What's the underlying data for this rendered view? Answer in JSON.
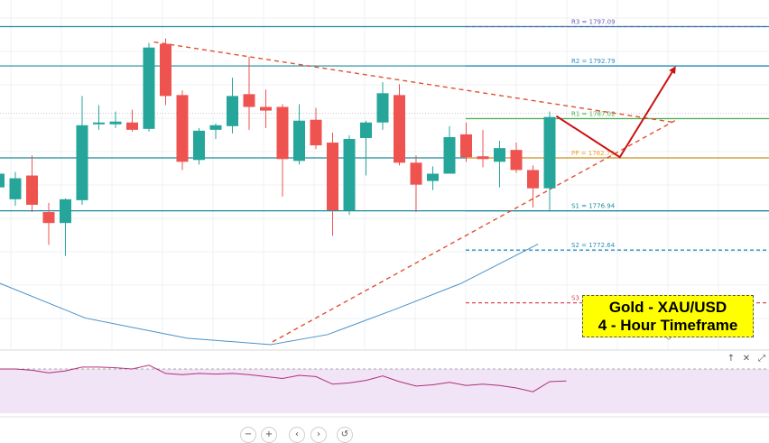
{
  "chart_data": [
    {
      "type": "candlestick",
      "title": "",
      "ylim": [
        1762.0,
        1800.0
      ],
      "grid": true,
      "candles": [
        {
          "o": 1779.5,
          "h": 1781.0,
          "c": 1781.0,
          "l": 1779.0
        },
        {
          "o": 1778.2,
          "h": 1781.2,
          "c": 1780.5,
          "l": 1777.5
        },
        {
          "o": 1780.8,
          "h": 1783.0,
          "c": 1777.6,
          "l": 1776.8
        },
        {
          "o": 1776.8,
          "h": 1777.8,
          "c": 1775.6,
          "l": 1773.2
        },
        {
          "o": 1775.6,
          "h": 1778.3,
          "c": 1778.2,
          "l": 1772.0
        },
        {
          "o": 1778.1,
          "h": 1789.5,
          "c": 1786.3,
          "l": 1777.6
        },
        {
          "o": 1786.4,
          "h": 1788.5,
          "c": 1786.6,
          "l": 1785.8
        },
        {
          "o": 1786.4,
          "h": 1787.8,
          "c": 1786.7,
          "l": 1786.0
        },
        {
          "o": 1786.6,
          "h": 1788.0,
          "c": 1785.8,
          "l": 1785.6
        },
        {
          "o": 1785.9,
          "h": 1795.3,
          "c": 1794.8,
          "l": 1785.6
        },
        {
          "o": 1795.2,
          "h": 1795.8,
          "c": 1789.5,
          "l": 1788.5
        },
        {
          "o": 1789.6,
          "h": 1790.1,
          "c": 1782.3,
          "l": 1781.4
        },
        {
          "o": 1782.5,
          "h": 1786.0,
          "c": 1785.7,
          "l": 1782.0
        },
        {
          "o": 1785.8,
          "h": 1786.5,
          "c": 1786.3,
          "l": 1784.8
        },
        {
          "o": 1786.2,
          "h": 1791.5,
          "c": 1789.5,
          "l": 1785.4
        },
        {
          "o": 1789.7,
          "h": 1793.8,
          "c": 1788.3,
          "l": 1785.8
        },
        {
          "o": 1788.3,
          "h": 1790.2,
          "c": 1787.9,
          "l": 1786.0
        },
        {
          "o": 1788.3,
          "h": 1788.6,
          "c": 1782.6,
          "l": 1778.5
        },
        {
          "o": 1782.4,
          "h": 1788.6,
          "c": 1786.8,
          "l": 1782.0
        },
        {
          "o": 1786.9,
          "h": 1788.2,
          "c": 1784.1,
          "l": 1783.7
        },
        {
          "o": 1784.4,
          "h": 1785.5,
          "c": 1777.0,
          "l": 1774.2
        },
        {
          "o": 1777.0,
          "h": 1785.2,
          "c": 1784.8,
          "l": 1776.5
        },
        {
          "o": 1784.9,
          "h": 1786.8,
          "c": 1786.6,
          "l": 1780.8
        },
        {
          "o": 1786.6,
          "h": 1791.0,
          "c": 1789.8,
          "l": 1785.8
        },
        {
          "o": 1789.6,
          "h": 1790.8,
          "c": 1782.2,
          "l": 1781.9
        },
        {
          "o": 1782.2,
          "h": 1783.0,
          "c": 1779.8,
          "l": 1776.8
        },
        {
          "o": 1780.2,
          "h": 1781.8,
          "c": 1781.0,
          "l": 1779.2
        },
        {
          "o": 1781.0,
          "h": 1786.2,
          "c": 1785.0,
          "l": 1781.0
        },
        {
          "o": 1785.3,
          "h": 1786.6,
          "c": 1782.8,
          "l": 1782.3
        },
        {
          "o": 1782.9,
          "h": 1785.8,
          "c": 1782.6,
          "l": 1781.7
        },
        {
          "o": 1782.3,
          "h": 1784.6,
          "c": 1783.8,
          "l": 1779.5
        },
        {
          "o": 1783.6,
          "h": 1784.4,
          "c": 1781.4,
          "l": 1781.1
        },
        {
          "o": 1781.4,
          "h": 1781.9,
          "c": 1779.4,
          "l": 1777.3
        },
        {
          "o": 1779.4,
          "h": 1787.8,
          "c": 1787.2,
          "l": 1777.0
        }
      ],
      "moving_average": [
        {
          "i": -1,
          "v": 1769.8
        },
        {
          "i": 5.2,
          "v": 1765.2
        },
        {
          "i": 11.3,
          "v": 1763.0
        },
        {
          "i": 16.3,
          "v": 1762.3
        },
        {
          "i": 19.7,
          "v": 1763.4
        },
        {
          "i": 23.8,
          "v": 1766.2
        },
        {
          "i": 27.7,
          "v": 1769.0
        },
        {
          "i": 32.3,
          "v": 1773.3
        }
      ],
      "pivot_levels": [
        {
          "label": "R3 = 1797.09",
          "value": 1797.09,
          "color": "#6b5bb5"
        },
        {
          "label": "R2 = 1792.79",
          "value": 1792.79,
          "color": "#2a8fbd"
        },
        {
          "label": "R1 = 1787.02",
          "value": 1787.02,
          "color": "#4caf50"
        },
        {
          "label": "PP = 1782.73",
          "value": 1782.73,
          "color": "#f0a030"
        },
        {
          "label": "S1 = 1776.94",
          "value": 1776.94,
          "color": "#1e8b9e"
        },
        {
          "label": "S2 = 1772.64",
          "value": 1772.64,
          "color": "#2a8fbd"
        },
        {
          "label": "S3 = 1766.87",
          "value": 1766.87,
          "color": "#e04a5a"
        }
      ],
      "horizontal_lines": [
        1797.09,
        1792.79,
        1782.73,
        1776.94
      ],
      "resistance_trendline": {
        "from": {
          "i": 9.3,
          "v": 1795.4
        },
        "to": {
          "i": 40.5,
          "v": 1786.6
        }
      },
      "support_trendline": {
        "from": {
          "i": 16.4,
          "v": 1762.6
        },
        "to": {
          "i": 40.5,
          "v": 1786.8
        }
      },
      "forecast_arrow": [
        {
          "i": 33.4,
          "v": 1787.3
        },
        {
          "i": 37.2,
          "v": 1782.8
        },
        {
          "i": 40.5,
          "v": 1792.6
        }
      ]
    },
    {
      "type": "line",
      "title": "",
      "ylim": [
        0,
        100
      ],
      "overbought": 70,
      "values": [
        70,
        70,
        68,
        64,
        67,
        73,
        73,
        72,
        70,
        76,
        63,
        61,
        63,
        62,
        63,
        61,
        58,
        55,
        60,
        58,
        46,
        48,
        52,
        59,
        50,
        43,
        45,
        49,
        44,
        46,
        44,
        40,
        34,
        50,
        51
      ]
    }
  ],
  "caption": {
    "line1": "Gold - XAU/USD",
    "line2": "4 - Hour Timeframe"
  },
  "indicator_toolbar": {
    "up_icon": "↑",
    "close_icon": "✕",
    "expand_icon": "⤢"
  },
  "nav_controls": {
    "zoom_out": "−",
    "zoom_in": "+",
    "scroll_left": "‹",
    "scroll_right": "›",
    "reset": "↺"
  },
  "colors": {
    "bull": "#26a69a",
    "bear": "#ef5350",
    "ma": "#4a90c8",
    "trend": "#e05030",
    "forecast": "#cc1111",
    "rsi_line": "#b0307a",
    "rsi_bg": "#f1e4f7",
    "caption_bg": "#ffff00",
    "level_line": "#1e8b9e"
  }
}
